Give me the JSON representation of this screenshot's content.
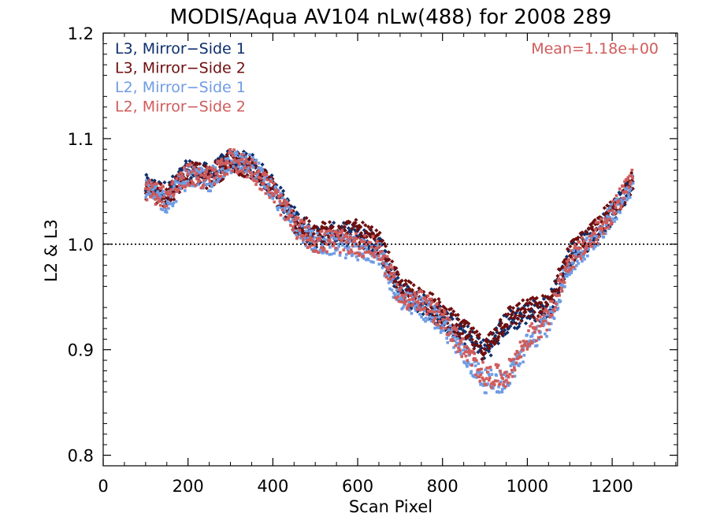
{
  "chart_data": {
    "type": "scatter",
    "title": "MODIS/Aqua AV104 nLw(488) for 2008 289",
    "xlabel": "Scan Pixel",
    "ylabel": "L2 & L3",
    "xlim": [
      0,
      1354
    ],
    "ylim": [
      0.79,
      1.2
    ],
    "xticks": [
      "0",
      "200",
      "400",
      "600",
      "800",
      "1000",
      "1200"
    ],
    "yticks": [
      "0.8",
      "0.9",
      "1.0",
      "1.1",
      "1.2"
    ],
    "reference_line": {
      "y": 1.0,
      "style": "dotted"
    },
    "annotation": "Mean=1.18e+00",
    "annotation_color": "#d05c5c",
    "marker_shape_l3": "diamond",
    "marker_shape_l2": "square",
    "x_range_of_points": [
      100,
      1250
    ],
    "series": [
      {
        "name": "L3, Mirror−Side 1",
        "color": "#0d2f6b",
        "x": [
          100,
          150,
          200,
          250,
          300,
          350,
          400,
          450,
          500,
          550,
          600,
          650,
          700,
          750,
          800,
          850,
          900,
          950,
          1000,
          1050,
          1100,
          1150,
          1200,
          1250
        ],
        "y": [
          1.055,
          1.048,
          1.07,
          1.065,
          1.08,
          1.075,
          1.055,
          1.025,
          1.005,
          1.01,
          1.008,
          1.0,
          0.955,
          0.945,
          0.93,
          0.915,
          0.898,
          0.925,
          0.935,
          0.94,
          0.99,
          1.005,
          1.03,
          1.06
        ]
      },
      {
        "name": "L3, Mirror−Side 2",
        "color": "#6e0e0e",
        "x": [
          100,
          150,
          200,
          250,
          300,
          350,
          400,
          450,
          500,
          550,
          600,
          650,
          700,
          750,
          800,
          850,
          900,
          950,
          1000,
          1050,
          1100,
          1150,
          1200,
          1250
        ],
        "y": [
          1.052,
          1.046,
          1.068,
          1.063,
          1.078,
          1.073,
          1.052,
          1.022,
          1.008,
          1.015,
          1.012,
          1.002,
          0.958,
          0.95,
          0.935,
          0.918,
          0.9,
          0.93,
          0.938,
          0.942,
          0.992,
          1.008,
          1.033,
          1.062
        ]
      },
      {
        "name": "L2, Mirror−Side 1",
        "color": "#6f9ce3",
        "x": [
          100,
          150,
          200,
          250,
          300,
          350,
          400,
          450,
          500,
          550,
          600,
          650,
          700,
          750,
          800,
          850,
          900,
          950,
          1000,
          1050,
          1100,
          1150,
          1200,
          1250
        ],
        "y": [
          1.05,
          1.04,
          1.065,
          1.06,
          1.078,
          1.075,
          1.05,
          1.02,
          1.0,
          1.0,
          0.995,
          0.992,
          0.945,
          0.94,
          0.925,
          0.895,
          0.87,
          0.87,
          0.905,
          0.925,
          0.98,
          1.0,
          1.028,
          1.06
        ]
      },
      {
        "name": "L2, Mirror−Side 2",
        "color": "#d05c5c",
        "x": [
          100,
          150,
          200,
          250,
          300,
          350,
          400,
          450,
          500,
          550,
          600,
          650,
          700,
          750,
          800,
          850,
          900,
          950,
          1000,
          1050,
          1100,
          1150,
          1200,
          1250
        ],
        "y": [
          1.052,
          1.045,
          1.066,
          1.062,
          1.08,
          1.072,
          1.05,
          1.018,
          1.002,
          1.003,
          1.0,
          0.995,
          0.95,
          0.945,
          0.93,
          0.9,
          0.875,
          0.875,
          0.91,
          0.93,
          0.985,
          1.003,
          1.03,
          1.063
        ]
      }
    ],
    "legend_position": "top-left",
    "grid": false
  }
}
